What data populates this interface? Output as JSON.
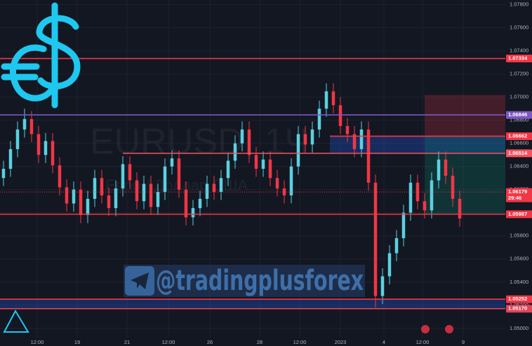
{
  "chart_data": {
    "type": "candlestick",
    "watermark": {
      "symbol": "EURUSD, 1Ч",
      "description": "Евро / Доллар США"
    },
    "handle": "@tradingplusforex",
    "up_color": "#5ad1e0",
    "down_color": "#f23645",
    "open": [
      1.063,
      1.0638,
      1.0655,
      1.0672,
      1.0681,
      1.0668,
      1.065,
      1.0662,
      1.0641,
      1.0622,
      1.0608,
      1.062,
      1.0598,
      1.0612,
      1.063,
      1.0615,
      1.0604,
      1.0621,
      1.0642,
      1.0628,
      1.061,
      1.0625,
      1.0605,
      1.0618,
      1.064,
      1.0647,
      1.062,
      1.0596,
      1.0604,
      1.0612,
      1.0625,
      1.0618,
      1.063,
      1.0645,
      1.066,
      1.0672,
      1.065,
      1.0638,
      1.0646,
      1.063,
      1.0621,
      1.0615,
      1.064,
      1.0668,
      1.0659,
      1.0672,
      1.069,
      1.0705,
      1.0693,
      1.0675,
      1.0668,
      1.0655,
      1.0672,
      1.0626,
      1.0528,
      1.0545,
      1.0565,
      1.0578,
      1.06,
      1.0626,
      1.061,
      1.0602,
      1.0628,
      1.0646,
      1.0632,
      1.0612
    ],
    "high": [
      1.0645,
      1.0662,
      1.0679,
      1.069,
      1.0688,
      1.0675,
      1.0669,
      1.0669,
      1.0648,
      1.0629,
      1.0627,
      1.0627,
      1.0619,
      1.0637,
      1.0637,
      1.0622,
      1.0628,
      1.0649,
      1.0649,
      1.0635,
      1.0632,
      1.0632,
      1.0625,
      1.0647,
      1.0654,
      1.0654,
      1.0627,
      1.0611,
      1.0619,
      1.0632,
      1.0632,
      1.0637,
      1.0652,
      1.0667,
      1.0679,
      1.0679,
      1.0657,
      1.0653,
      1.0653,
      1.0637,
      1.0628,
      1.0647,
      1.0675,
      1.0675,
      1.0679,
      1.0697,
      1.0712,
      1.0712,
      1.07,
      1.0682,
      1.0675,
      1.0679,
      1.0679,
      1.0633,
      1.0552,
      1.0572,
      1.0585,
      1.0607,
      1.0633,
      1.0633,
      1.0617,
      1.0635,
      1.0653,
      1.0653,
      1.0639,
      1.0619
    ],
    "low": [
      1.0623,
      1.0631,
      1.0648,
      1.0665,
      1.0661,
      1.0643,
      1.0643,
      1.0634,
      1.0615,
      1.0601,
      1.0601,
      1.0591,
      1.0591,
      1.0605,
      1.0608,
      1.0597,
      1.0597,
      1.0614,
      1.0621,
      1.0603,
      1.0603,
      1.0598,
      1.0598,
      1.0611,
      1.0633,
      1.0613,
      1.0589,
      1.0589,
      1.0597,
      1.0605,
      1.0611,
      1.0611,
      1.0623,
      1.0638,
      1.0653,
      1.0643,
      1.0631,
      1.0631,
      1.0623,
      1.0614,
      1.0608,
      1.0608,
      1.0633,
      1.0652,
      1.0652,
      1.0665,
      1.0683,
      1.0686,
      1.0668,
      1.0661,
      1.0648,
      1.0648,
      1.0619,
      1.0518,
      1.0521,
      1.0538,
      1.0558,
      1.0571,
      1.0593,
      1.0603,
      1.0595,
      1.0595,
      1.0621,
      1.0625,
      1.0605,
      1.0588
    ],
    "close": [
      1.0638,
      1.0655,
      1.0672,
      1.0681,
      1.0668,
      1.065,
      1.0662,
      1.0641,
      1.0622,
      1.0608,
      1.062,
      1.0598,
      1.0612,
      1.063,
      1.0615,
      1.0604,
      1.0621,
      1.0642,
      1.0628,
      1.061,
      1.0625,
      1.0605,
      1.0618,
      1.064,
      1.0647,
      1.062,
      1.0596,
      1.0604,
      1.0612,
      1.0625,
      1.0618,
      1.063,
      1.0645,
      1.066,
      1.0672,
      1.065,
      1.0638,
      1.0646,
      1.063,
      1.0621,
      1.0615,
      1.064,
      1.0668,
      1.0659,
      1.0672,
      1.069,
      1.0705,
      1.0693,
      1.0675,
      1.0668,
      1.0655,
      1.0672,
      1.0626,
      1.0528,
      1.0545,
      1.0565,
      1.0578,
      1.06,
      1.0626,
      1.061,
      1.0602,
      1.0628,
      1.0646,
      1.0632,
      1.0612,
      1.0595
    ],
    "xlim": [
      0,
      72
    ],
    "xticks": [
      {
        "value": 5.3,
        "label": "12:00"
      },
      {
        "value": 11,
        "label": "19"
      },
      {
        "value": 18.1,
        "label": "21"
      },
      {
        "value": 24,
        "label": "12:00"
      },
      {
        "value": 29.9,
        "label": "26"
      },
      {
        "value": 37,
        "label": "28"
      },
      {
        "value": 42.7,
        "label": "12:00"
      },
      {
        "value": 48.5,
        "label": "2023"
      },
      {
        "value": 54.7,
        "label": "4"
      },
      {
        "value": 60.2,
        "label": "12:00"
      },
      {
        "value": 66,
        "label": "9"
      }
    ],
    "ylim": [
      1.0492,
      1.0784
    ],
    "yticks": [
      {
        "value": 1.05,
        "label": "1.05000"
      },
      {
        "value": 1.052,
        "label": "1.05200"
      },
      {
        "value": 1.054,
        "label": "1.05400"
      },
      {
        "value": 1.056,
        "label": "1.05600"
      },
      {
        "value": 1.058,
        "label": "1.05800"
      },
      {
        "value": 1.06,
        "label": "1.06000"
      },
      {
        "value": 1.062,
        "label": "1.06200"
      },
      {
        "value": 1.064,
        "label": "1.06400"
      },
      {
        "value": 1.066,
        "label": "1.06600"
      },
      {
        "value": 1.068,
        "label": "1.06800"
      },
      {
        "value": 1.07,
        "label": "1.07000"
      },
      {
        "value": 1.072,
        "label": "1.07200"
      },
      {
        "value": 1.074,
        "label": "1.07400"
      },
      {
        "value": 1.076,
        "label": "1.07600"
      },
      {
        "value": 1.078,
        "label": "1.07800"
      }
    ],
    "grid": true,
    "zones": [
      {
        "from": 1.06514,
        "to": 1.06662,
        "x_start": 47
      },
      {
        "from": 1.0517,
        "to": 1.05252,
        "x_start": 0
      }
    ],
    "position": {
      "x_start": 60.5,
      "stop": 1.0702,
      "entry": 1.06662,
      "target": 1.05987
    },
    "levels": [
      {
        "value": 1.07334,
        "label": "1.07334",
        "color": "#f23645",
        "x_start": 0
      },
      {
        "value": 1.06846,
        "label": "1.06846",
        "color": "#7e57c2",
        "x_start": 0
      },
      {
        "value": 1.06662,
        "label": "1.06662",
        "color": "#f23645",
        "x_start": 47
      },
      {
        "value": 1.06514,
        "label": "1.06514",
        "color": "#f7525f",
        "x_start": 17.5
      },
      {
        "value": 1.06179,
        "label": "1.06179",
        "sublabel": "29:46",
        "color": "#f23645",
        "x_start": 0,
        "style": "dotted"
      },
      {
        "value": 1.05987,
        "label": "1.05987",
        "color": "#f23645",
        "x_start": 0
      },
      {
        "value": 1.05252,
        "label": "1.05252",
        "color": "#f23645",
        "x_start": 0
      },
      {
        "value": 1.0517,
        "label": "1.05170",
        "color": "#e0455a",
        "x_start": 0
      }
    ]
  }
}
